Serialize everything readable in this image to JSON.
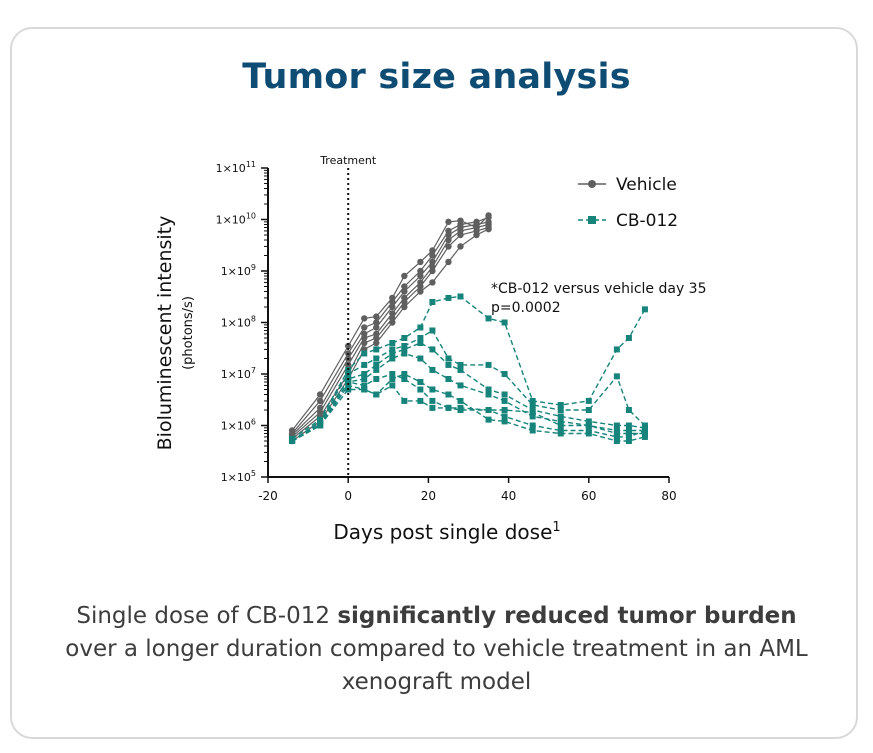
{
  "title": "Tumor size analysis",
  "caption": {
    "part1": "Single dose of CB-012 ",
    "bold": "significantly reduced tumor burden",
    "part2": "over a longer duration compared to vehicle treatment in an AML xenograft model"
  },
  "colors": {
    "title": "#0f4c74",
    "vehicle": "#5f5f5f",
    "cb012": "#16847b",
    "text": "#3d3d3d"
  },
  "chart_data": {
    "type": "line",
    "xlabel": "Days post single dose",
    "xlabel_superscript": "1",
    "ylabel": "Bioluminescent intensity",
    "ylabel_units": "(photons/s)",
    "xlim": [
      -20,
      80
    ],
    "x_ticks": [
      "-20",
      "0",
      "20",
      "40",
      "60",
      "80"
    ],
    "y_scale": "log",
    "ylim": [
      100000,
      100000000000
    ],
    "y_tick_base": "1×10",
    "y_tick_exponents": [
      "5",
      "6",
      "7",
      "8",
      "9",
      "10",
      "11"
    ],
    "treatment_line": {
      "x": 0,
      "label": "Treatment"
    },
    "annotation": [
      "*CB-012 versus vehicle day 35",
      "p=0.0002"
    ],
    "legend_position": "top-right",
    "series": [
      {
        "name": "Vehicle",
        "group": "Vehicle",
        "x": [
          -14,
          -7,
          0,
          4,
          7,
          11,
          14,
          18,
          21,
          25,
          28,
          32,
          35
        ],
        "y": [
          800000,
          4000000,
          35000000,
          120000000,
          130000000,
          300000000,
          800000000,
          1500000000,
          2500000000,
          9000000000,
          9500000000,
          7000000000,
          12000000000
        ]
      },
      {
        "group": "Vehicle",
        "x": [
          -14,
          -7,
          0,
          4,
          7,
          11,
          14,
          18,
          21,
          25,
          28,
          32,
          35
        ],
        "y": [
          700000,
          3000000,
          25000000,
          80000000,
          100000000,
          250000000,
          500000000,
          1000000000,
          2000000000,
          6000000000,
          8000000000,
          9000000000,
          11000000000
        ]
      },
      {
        "group": "Vehicle",
        "x": [
          -14,
          -7,
          0,
          4,
          7,
          11,
          14,
          18,
          21,
          25,
          28,
          32,
          35
        ],
        "y": [
          650000,
          2200000,
          20000000,
          60000000,
          80000000,
          200000000,
          400000000,
          800000000,
          1500000000,
          5000000000,
          7000000000,
          8000000000,
          9000000000
        ]
      },
      {
        "group": "Vehicle",
        "x": [
          -14,
          -7,
          0,
          4,
          7,
          11,
          14,
          18,
          21,
          25,
          28,
          32,
          35
        ],
        "y": [
          600000,
          1800000,
          15000000,
          50000000,
          60000000,
          150000000,
          300000000,
          600000000,
          1200000000,
          4000000000,
          6000000000,
          7000000000,
          8000000000
        ]
      },
      {
        "group": "Vehicle",
        "x": [
          -14,
          -7,
          0,
          4,
          7,
          11,
          14,
          18,
          21,
          25,
          28,
          32,
          35
        ],
        "y": [
          550000,
          1500000,
          10000000,
          40000000,
          50000000,
          120000000,
          250000000,
          500000000,
          1000000000,
          3000000000,
          5000000000,
          6000000000,
          7000000000
        ]
      },
      {
        "group": "Vehicle",
        "x": [
          -14,
          -7,
          0,
          4,
          7,
          11,
          14,
          18,
          21,
          25,
          28,
          32,
          35
        ],
        "y": [
          500000,
          1200000,
          8000000,
          30000000,
          40000000,
          100000000,
          200000000,
          400000000,
          600000000,
          1500000000,
          3000000000,
          5000000000,
          6500000000
        ]
      },
      {
        "name": "CB-012",
        "group": "CB-012",
        "x": [
          -14,
          -7,
          0,
          4,
          7,
          11,
          14,
          18,
          21,
          25,
          28,
          35,
          39,
          46,
          53,
          60,
          67,
          70,
          74
        ],
        "y": [
          550000,
          1300000,
          12000000,
          25000000,
          30000000,
          40000000,
          50000000,
          80000000,
          250000000,
          300000000,
          320000000,
          120000000,
          100000000,
          3000000,
          2500000,
          3000000,
          30000000,
          50000000,
          180000000
        ]
      },
      {
        "group": "CB-012",
        "x": [
          -14,
          -7,
          0,
          4,
          7,
          11,
          14,
          18,
          21,
          25,
          28,
          35,
          39,
          46,
          53,
          60,
          67,
          70,
          74
        ],
        "y": [
          500000,
          1200000,
          10000000,
          15000000,
          20000000,
          30000000,
          35000000,
          50000000,
          70000000,
          20000000,
          15000000,
          15000000,
          10000000,
          2500000,
          2000000,
          2000000,
          9000000,
          2000000,
          1000000
        ]
      },
      {
        "group": "CB-012",
        "x": [
          -14,
          -7,
          0,
          4,
          7,
          11,
          14,
          18,
          21,
          25,
          28,
          35,
          39,
          46,
          53,
          60,
          67,
          70,
          74
        ],
        "y": [
          500000,
          1100000,
          8000000,
          10000000,
          15000000,
          25000000,
          30000000,
          40000000,
          30000000,
          15000000,
          12000000,
          5000000,
          4000000,
          2000000,
          1500000,
          1200000,
          1000000,
          1000000,
          900000
        ]
      },
      {
        "group": "CB-012",
        "x": [
          -14,
          -7,
          0,
          4,
          7,
          11,
          14,
          18,
          21,
          25,
          28,
          35,
          39,
          46,
          53,
          60,
          67,
          70,
          74
        ],
        "y": [
          500000,
          1000000,
          7000000,
          8000000,
          12000000,
          20000000,
          25000000,
          20000000,
          12000000,
          8000000,
          6000000,
          4000000,
          3000000,
          1500000,
          1200000,
          1000000,
          800000,
          800000,
          800000
        ]
      },
      {
        "group": "CB-012",
        "x": [
          -14,
          -7,
          0,
          4,
          7,
          11,
          14,
          18,
          21,
          25,
          28,
          35,
          39,
          46,
          53,
          60,
          67,
          70,
          74
        ],
        "y": [
          500000,
          1000000,
          7000000,
          6000000,
          8000000,
          10000000,
          8000000,
          5000000,
          3000000,
          2200000,
          2200000,
          2000000,
          2000000,
          1800000,
          1000000,
          1000000,
          700000,
          700000,
          700000
        ]
      },
      {
        "group": "CB-012",
        "x": [
          -14,
          -7,
          0,
          4,
          7,
          11,
          14,
          18,
          21,
          25,
          28,
          35,
          39,
          46,
          53,
          60,
          67,
          70,
          74
        ],
        "y": [
          500000,
          1000000,
          6000000,
          5000000,
          4000000,
          6000000,
          3000000,
          3000000,
          2200000,
          2200000,
          2000000,
          2000000,
          1500000,
          1000000,
          800000,
          800000,
          600000,
          600000,
          800000
        ]
      },
      {
        "group": "CB-012",
        "x": [
          -14,
          -7,
          0,
          4,
          7,
          11,
          14,
          18,
          21,
          25,
          28,
          35,
          39,
          46,
          53,
          60,
          67,
          70,
          74
        ],
        "y": [
          500000,
          1000000,
          5000000,
          5000000,
          4000000,
          8000000,
          10000000,
          7000000,
          5000000,
          4000000,
          3000000,
          1300000,
          1200000,
          800000,
          700000,
          700000,
          500000,
          500000,
          600000
        ]
      }
    ]
  }
}
